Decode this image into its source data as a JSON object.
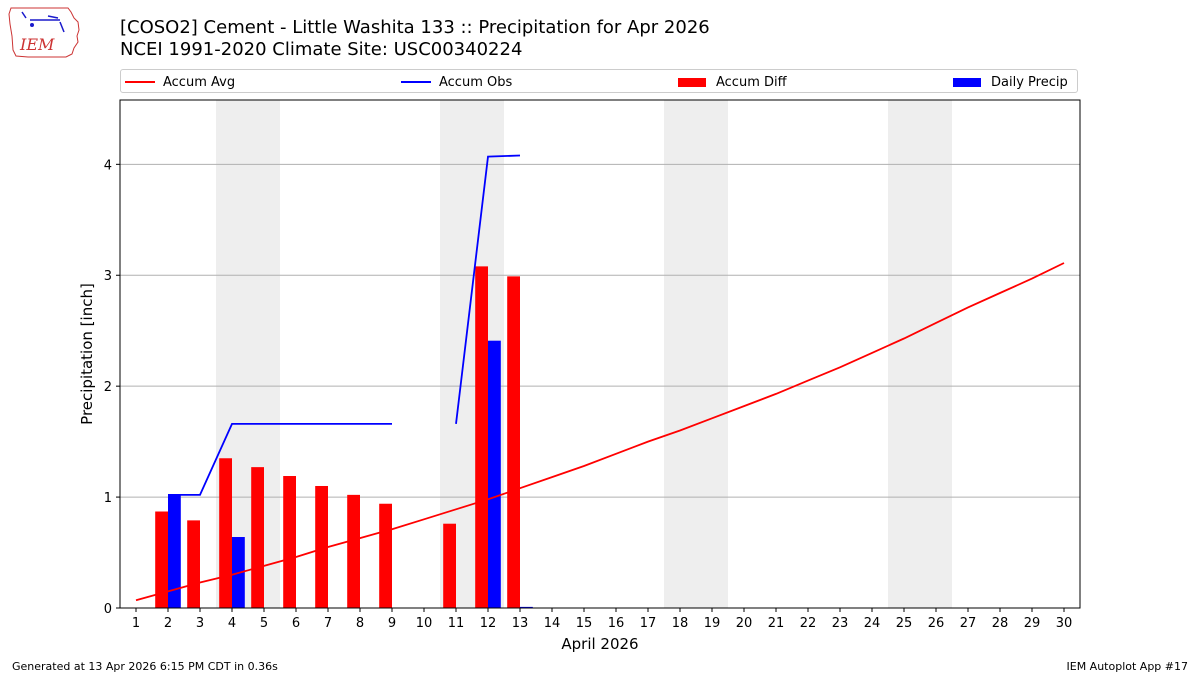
{
  "header": {
    "title_line_1": "[COSO2] Cement - Little Washita 133 :: Precipitation for Apr 2026",
    "title_line_2": "NCEI 1991-2020 Climate Site: USC00340224",
    "logo_text": "IEM"
  },
  "legend": {
    "accum_avg": "Accum Avg",
    "accum_obs": "Accum Obs",
    "accum_diff": "Accum Diff",
    "daily_precip": "Daily Precip"
  },
  "footer": {
    "generated": "Generated at 13 Apr 2026 6:15 PM CDT in 0.36s",
    "app": "IEM Autoplot App #17"
  },
  "colors": {
    "accum_avg": "#ff0000",
    "accum_obs": "#0000ff",
    "accum_diff": "#ff0000",
    "daily_precip": "#0000ff",
    "weekend_shade": "#eeeeee",
    "grid": "#b0b0b0"
  },
  "chart_data": {
    "type": "bar",
    "xlabel": "April 2026",
    "ylabel": "Precipitation [inch]",
    "xlim": [
      0.5,
      30.5
    ],
    "ylim": [
      0,
      4.58
    ],
    "x_ticks": [
      1,
      2,
      3,
      4,
      5,
      6,
      7,
      8,
      9,
      10,
      11,
      12,
      13,
      14,
      15,
      16,
      17,
      18,
      19,
      20,
      21,
      22,
      23,
      24,
      25,
      26,
      27,
      28,
      29,
      30
    ],
    "y_ticks": [
      0,
      1,
      2,
      3,
      4
    ],
    "grid": "y",
    "legend_placement": "top",
    "shaded_days": [
      [
        3.5,
        5.5
      ],
      [
        10.5,
        12.5
      ],
      [
        17.5,
        19.5
      ],
      [
        24.5,
        26.5
      ]
    ],
    "series": [
      {
        "name": "Accum Avg",
        "kind": "line",
        "x": [
          1,
          2,
          3,
          4,
          5,
          6,
          7,
          8,
          9,
          10,
          11,
          12,
          13,
          14,
          15,
          16,
          17,
          18,
          19,
          20,
          21,
          22,
          23,
          24,
          25,
          26,
          27,
          28,
          29,
          30
        ],
        "values": [
          0.07,
          0.15,
          0.23,
          0.3,
          0.38,
          0.46,
          0.55,
          0.63,
          0.71,
          0.8,
          0.89,
          0.98,
          1.08,
          1.18,
          1.28,
          1.39,
          1.5,
          1.6,
          1.71,
          1.82,
          1.93,
          2.05,
          2.17,
          2.3,
          2.43,
          2.57,
          2.71,
          2.84,
          2.97,
          3.11
        ]
      },
      {
        "name": "Accum Obs",
        "kind": "line",
        "x": [
          2,
          3,
          4,
          5,
          6,
          7,
          8,
          9,
          null,
          11,
          12,
          13
        ],
        "values": [
          1.02,
          1.02,
          1.66,
          1.66,
          1.66,
          1.66,
          1.66,
          1.66,
          null,
          1.66,
          4.07,
          4.08
        ]
      },
      {
        "name": "Accum Diff",
        "kind": "bar",
        "x": [
          2,
          3,
          4,
          5,
          6,
          7,
          8,
          9,
          11,
          12,
          13
        ],
        "values": [
          0.87,
          0.79,
          1.35,
          1.27,
          1.19,
          1.1,
          1.02,
          0.94,
          0.76,
          3.08,
          2.99
        ]
      },
      {
        "name": "Daily Precip",
        "kind": "bar",
        "x": [
          2,
          4,
          12,
          13
        ],
        "values": [
          1.02,
          0.64,
          2.41,
          0.01
        ]
      }
    ]
  }
}
